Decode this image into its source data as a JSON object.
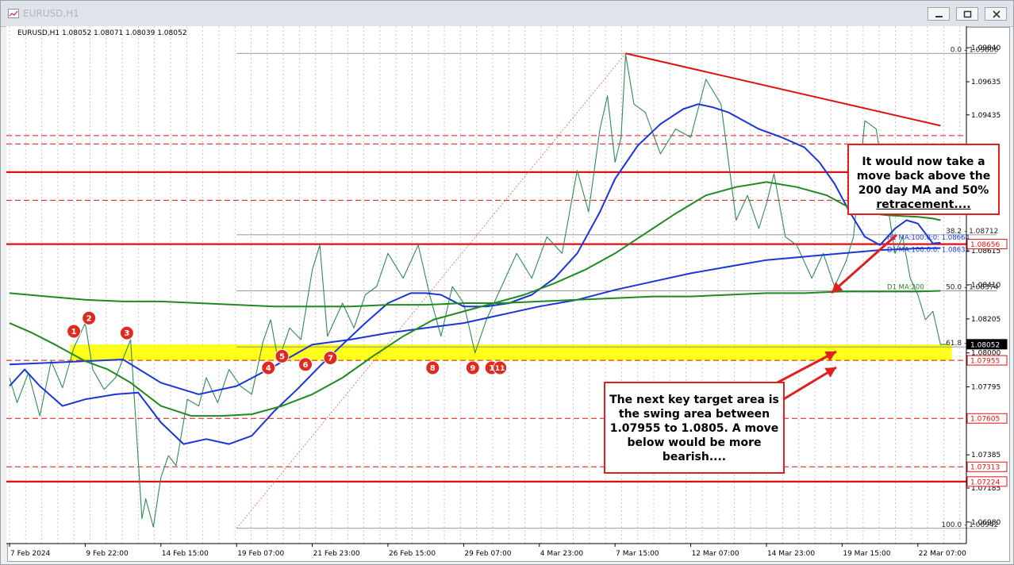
{
  "window": {
    "title": "EURUSD,H1"
  },
  "chart_data": {
    "type": "line",
    "info_label": "EURUSD,H1  1.08052 1.08071 1.08039 1.08052",
    "y_axis": {
      "range": [
        1.0685,
        1.0997
      ],
      "ticks": [
        "1.09840",
        "1.09635",
        "1.09435",
        "1.08615",
        "1.08410",
        "1.08205",
        "1.08000",
        "1.07795",
        "1.07385",
        "1.07185",
        "1.06980"
      ],
      "tick_values": [
        1.0984,
        1.09635,
        1.09435,
        1.08615,
        1.0841,
        1.08205,
        1.08,
        1.07795,
        1.07385,
        1.07185,
        1.0698
      ],
      "price_tags": [
        {
          "label": "1.08656",
          "value": 1.08656,
          "style": "outline"
        },
        {
          "label": "1.08052",
          "value": 1.08052,
          "style": "dark"
        },
        {
          "label": "1.07955",
          "value": 1.07955,
          "style": "outline"
        },
        {
          "label": "1.07605",
          "value": 1.07605,
          "style": "outline"
        },
        {
          "label": "1.07313",
          "value": 1.07313,
          "style": "outline"
        },
        {
          "label": "1.07224",
          "value": 1.07224,
          "style": "outline"
        }
      ]
    },
    "x_axis": {
      "ticks": [
        "7 Feb 2024",
        "9 Feb 22:00",
        "14 Feb 15:00",
        "19 Feb 07:00",
        "21 Feb 23:00",
        "26 Feb 15:00",
        "29 Feb 07:00",
        "4 Mar 23:00",
        "7 Mar 15:00",
        "12 Mar 07:00",
        "14 Mar 23:00",
        "19 Mar 15:00",
        "22 Mar 07:00"
      ],
      "tick_index": [
        0,
        1,
        2,
        3,
        4,
        5,
        6,
        7,
        8,
        9,
        10,
        11,
        12
      ]
    },
    "fibonacci": {
      "levels": [
        {
          "label": "0.0 - 1.09806",
          "value": 1.09806
        },
        {
          "label": "38.2 - 1.08712",
          "value": 1.08712
        },
        {
          "label": "50.0 - 1.08374",
          "value": 1.08374
        },
        {
          "label": "61.8 - 1.08036",
          "value": 1.08036
        },
        {
          "label": "100.0 - 1.06942",
          "value": 1.06942
        }
      ],
      "start": {
        "t": 3.0,
        "price": 1.06942
      },
      "end": {
        "t": 8.14,
        "price": 1.09806
      }
    },
    "ma_labels": [
      {
        "label": "H1 MA:100:0:0: 1.08664",
        "value": 1.08664
      },
      {
        "label": "D1 MA:100:0:0: 1.08632",
        "value": 1.08632
      },
      {
        "label": "D1 MA:200",
        "value": 1.08374
      }
    ],
    "horizontal_lines": [
      {
        "value": 1.0909,
        "style": "solid",
        "color": "#e01010"
      },
      {
        "value": 1.08656,
        "style": "solid",
        "color": "#e01010"
      },
      {
        "value": 1.07224,
        "style": "solid",
        "color": "#e01010"
      },
      {
        "value": 1.0931,
        "style": "dashed",
        "color": "#e01010"
      },
      {
        "value": 1.0926,
        "style": "dashed",
        "color": "#e01010"
      },
      {
        "value": 1.0892,
        "style": "dashed",
        "color": "#e01010"
      },
      {
        "value": 1.07955,
        "style": "dashed",
        "color": "#e01010"
      },
      {
        "value": 1.07605,
        "style": "dashed",
        "color": "#e01010"
      },
      {
        "value": 1.07313,
        "style": "dashed",
        "color": "#e01010"
      }
    ],
    "zone": {
      "from": 1.07955,
      "to": 1.0805,
      "color": "#ffff00"
    },
    "trendline": {
      "start": {
        "t": 8.14,
        "price": 1.09806
      },
      "end": {
        "t": 12.3,
        "price": 1.0937
      }
    },
    "swing_markers": [
      {
        "label": "1",
        "t": 0.85,
        "price": 1.0813
      },
      {
        "label": "2",
        "t": 1.05,
        "price": 1.0821
      },
      {
        "label": "3",
        "t": 1.55,
        "price": 1.0812
      },
      {
        "label": "4",
        "t": 3.42,
        "price": 1.0791
      },
      {
        "label": "5",
        "t": 3.6,
        "price": 1.0798
      },
      {
        "label": "6",
        "t": 3.91,
        "price": 1.0793
      },
      {
        "label": "7",
        "t": 4.24,
        "price": 1.0797
      },
      {
        "label": "8",
        "t": 5.59,
        "price": 1.0791
      },
      {
        "label": "9",
        "t": 6.12,
        "price": 1.0791
      },
      {
        "label": "1",
        "t": 6.37,
        "price": 1.0791
      },
      {
        "label": "11",
        "t": 6.48,
        "price": 1.0791
      }
    ],
    "series": [
      {
        "kind": "price",
        "color": "#2e8b57",
        "t": [
          0,
          0.1,
          0.25,
          0.4,
          0.55,
          0.7,
          0.85,
          1.0,
          1.1,
          1.25,
          1.4,
          1.6,
          1.75,
          1.8,
          1.9,
          2.0,
          2.1,
          2.2,
          2.35,
          2.5,
          2.6,
          2.75,
          2.9,
          3.05,
          3.2,
          3.35,
          3.45,
          3.55,
          3.7,
          3.85,
          4.0,
          4.1,
          4.2,
          4.3,
          4.4,
          4.55,
          4.7,
          4.85,
          5.0,
          5.2,
          5.4,
          5.55,
          5.7,
          5.85,
          6.0,
          6.15,
          6.3,
          6.5,
          6.7,
          6.9,
          7.1,
          7.3,
          7.5,
          7.65,
          7.8,
          7.9,
          8.0,
          8.08,
          8.14,
          8.25,
          8.4,
          8.6,
          8.8,
          9.0,
          9.2,
          9.4,
          9.5,
          9.6,
          9.75,
          9.9,
          10.0,
          10.1,
          10.25,
          10.4,
          10.6,
          10.75,
          10.9,
          11.05,
          11.15,
          11.3,
          11.45,
          11.55,
          11.7,
          11.8,
          11.9,
          12.0,
          12.1,
          12.2,
          12.3,
          12.4
        ],
        "price": [
          1.0785,
          1.077,
          1.0788,
          1.0762,
          1.0795,
          1.0779,
          1.0803,
          1.0818,
          1.079,
          1.0778,
          1.0785,
          1.0808,
          1.07,
          1.0712,
          1.0695,
          1.0725,
          1.0738,
          1.0732,
          1.0772,
          1.0768,
          1.0785,
          1.077,
          1.079,
          1.078,
          1.0775,
          1.0807,
          1.082,
          1.0795,
          1.0815,
          1.0808,
          1.085,
          1.0865,
          1.081,
          1.082,
          1.083,
          1.0815,
          1.0835,
          1.084,
          1.086,
          1.0845,
          1.0865,
          1.0835,
          1.081,
          1.084,
          1.083,
          1.08,
          1.082,
          1.084,
          1.086,
          1.0845,
          1.087,
          1.086,
          1.091,
          1.0885,
          1.0935,
          1.0955,
          1.0915,
          1.093,
          1.098,
          1.095,
          1.0945,
          1.092,
          1.0935,
          1.093,
          1.0965,
          1.095,
          1.0915,
          1.088,
          1.0895,
          1.0875,
          1.089,
          1.0908,
          1.087,
          1.0865,
          1.0845,
          1.086,
          1.084,
          1.0855,
          1.087,
          1.094,
          1.0935,
          1.0905,
          1.086,
          1.087,
          1.0845,
          1.0835,
          1.082,
          1.0825,
          1.0805,
          1.08052
        ]
      },
      {
        "kind": "ma_h1_100",
        "color": "#1a35d8",
        "t": [
          0,
          0.2,
          0.4,
          0.7,
          1.0,
          1.4,
          1.7,
          2.0,
          2.3,
          2.6,
          2.9,
          3.2,
          3.5,
          3.8,
          4.1,
          4.4,
          4.7,
          5.0,
          5.3,
          5.5,
          5.7,
          6.0,
          6.3,
          6.6,
          6.9,
          7.2,
          7.5,
          7.8,
          8.0,
          8.3,
          8.6,
          8.9,
          9.1,
          9.3,
          9.5,
          9.7,
          9.9,
          10.2,
          10.5,
          10.7,
          10.9,
          11.1,
          11.3,
          11.5,
          11.7,
          11.85,
          12.0,
          12.1,
          12.2,
          12.3
        ],
        "price": [
          1.078,
          1.079,
          1.078,
          1.0768,
          1.0772,
          1.0775,
          1.0776,
          1.0758,
          1.0745,
          1.0748,
          1.0745,
          1.075,
          1.0765,
          1.0778,
          1.0792,
          1.0805,
          1.0818,
          1.083,
          1.0836,
          1.0836,
          1.0835,
          1.0828,
          1.0828,
          1.083,
          1.0835,
          1.0845,
          1.086,
          1.0885,
          1.0905,
          1.0925,
          1.0938,
          1.0947,
          1.095,
          1.0948,
          1.0945,
          1.094,
          1.0935,
          1.093,
          1.0924,
          1.0915,
          1.0902,
          1.0885,
          1.087,
          1.0865,
          1.0875,
          1.088,
          1.0878,
          1.0872,
          1.0866,
          1.08664
        ]
      },
      {
        "kind": "ma_d1_100",
        "color": "#1a35d8",
        "t": [
          0,
          0.5,
          1.0,
          1.5,
          2.0,
          2.5,
          3.0,
          3.5,
          4.0,
          4.5,
          5.0,
          5.5,
          6.0,
          6.5,
          7.0,
          7.5,
          8.0,
          8.5,
          9.0,
          9.5,
          10.0,
          10.5,
          11.0,
          11.5,
          12.0,
          12.3
        ],
        "price": [
          1.0793,
          1.0794,
          1.0795,
          1.0796,
          1.0782,
          1.0775,
          1.078,
          1.0792,
          1.0805,
          1.0808,
          1.0812,
          1.0815,
          1.0818,
          1.0823,
          1.0828,
          1.0832,
          1.0838,
          1.0843,
          1.0848,
          1.0852,
          1.0856,
          1.0858,
          1.086,
          1.0862,
          1.0863,
          1.08632
        ]
      },
      {
        "kind": "ma_d1_200",
        "color": "#208a20",
        "t": [
          0,
          0.5,
          1.0,
          1.5,
          2.0,
          2.5,
          3.0,
          3.5,
          4.0,
          4.5,
          5.0,
          5.5,
          6.0,
          6.5,
          7.0,
          7.5,
          8.0,
          8.5,
          9.0,
          9.5,
          10.0,
          10.5,
          11.0,
          11.5,
          12.0,
          12.3
        ],
        "price": [
          1.0836,
          1.0834,
          1.0832,
          1.0831,
          1.0831,
          1.083,
          1.0829,
          1.0828,
          1.0828,
          1.0828,
          1.0829,
          1.0829,
          1.083,
          1.083,
          1.0831,
          1.0832,
          1.0833,
          1.0834,
          1.0834,
          1.0835,
          1.0836,
          1.0836,
          1.0837,
          1.0837,
          1.0837,
          1.08374
        ]
      },
      {
        "kind": "ma_h1_200",
        "color": "#208a20",
        "t": [
          0,
          0.3,
          0.6,
          1.0,
          1.3,
          1.6,
          2.0,
          2.4,
          2.8,
          3.2,
          3.6,
          4.0,
          4.4,
          4.8,
          5.2,
          5.6,
          6.0,
          6.4,
          6.8,
          7.2,
          7.6,
          8.0,
          8.4,
          8.8,
          9.2,
          9.6,
          10.0,
          10.4,
          10.8,
          11.2,
          11.6,
          12.0,
          12.2,
          12.3
        ],
        "price": [
          1.0818,
          1.0812,
          1.0805,
          1.0795,
          1.079,
          1.0782,
          1.0768,
          1.0762,
          1.0762,
          1.0763,
          1.0768,
          1.0775,
          1.0785,
          1.0798,
          1.081,
          1.082,
          1.0825,
          1.083,
          1.0835,
          1.0842,
          1.085,
          1.086,
          1.0872,
          1.0884,
          1.0895,
          1.09,
          1.0903,
          1.09,
          1.0895,
          1.0885,
          1.0883,
          1.0882,
          1.0881,
          1.088
        ]
      }
    ]
  },
  "callouts": {
    "top": {
      "line1": "It would now take a",
      "line2": "move back above the",
      "line3": "200 day MA and 50%",
      "line4": "retracement...."
    },
    "bottom": {
      "line1": "The next key target area is",
      "line2": "the swing area between",
      "line3": "1.07955 to 1.0805.   A move",
      "line4": "below would be more",
      "line5": "bearish...."
    }
  }
}
